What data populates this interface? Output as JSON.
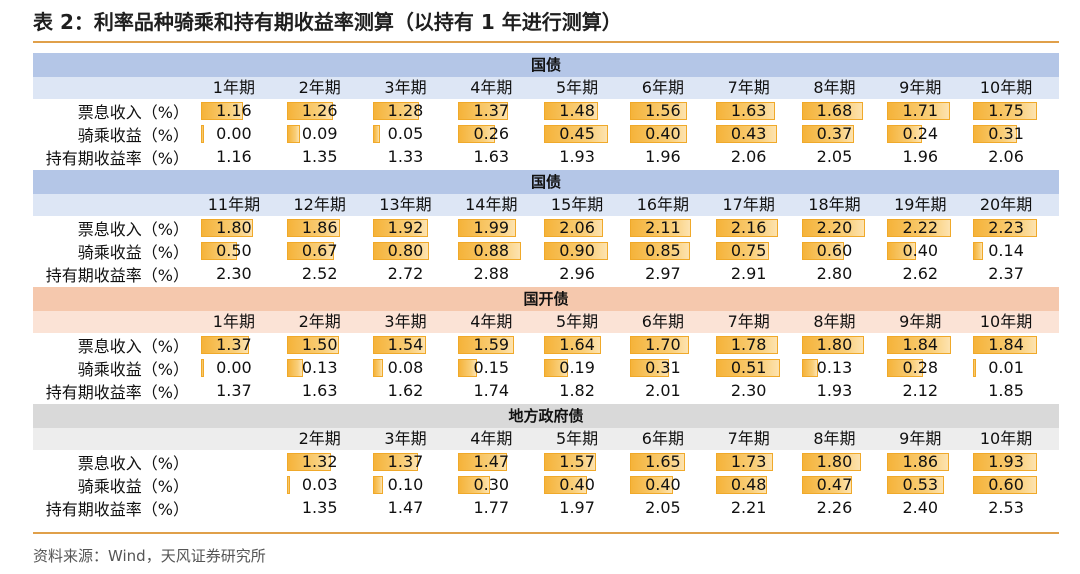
{
  "title": "表 2：利率品种骑乘和持有期收益率测算（以持有 1 年进行测算）",
  "source": "资料来源：Wind，天风证券研究所",
  "colors": {
    "rule": "#e0a04a",
    "bar": "#f5b33a",
    "blue_header": "#b4c6e7",
    "peach_header": "#f5c8ad",
    "gray_header": "#d9d9d9"
  },
  "sections": [
    {
      "name": "国债",
      "theme": "s-blue",
      "periods": [
        "1年期",
        "2年期",
        "3年期",
        "4年期",
        "5年期",
        "6年期",
        "7年期",
        "8年期",
        "9年期",
        "10年期"
      ],
      "rows": [
        {
          "label": "票息收入（%）",
          "bar": true,
          "values": [
            "1.16",
            "1.26",
            "1.28",
            "1.37",
            "1.48",
            "1.56",
            "1.63",
            "1.68",
            "1.71",
            "1.75"
          ]
        },
        {
          "label": "骑乘收益（%）",
          "bar": true,
          "values": [
            "0.00",
            "0.09",
            "0.05",
            "0.26",
            "0.45",
            "0.40",
            "0.43",
            "0.37",
            "0.24",
            "0.31"
          ]
        },
        {
          "label": "持有期收益率（%）",
          "bar": false,
          "values": [
            "1.16",
            "1.35",
            "1.33",
            "1.63",
            "1.93",
            "1.96",
            "2.06",
            "2.05",
            "1.96",
            "2.06"
          ]
        }
      ]
    },
    {
      "name": "国债",
      "theme": "s-blue",
      "periods": [
        "11年期",
        "12年期",
        "13年期",
        "14年期",
        "15年期",
        "16年期",
        "17年期",
        "18年期",
        "19年期",
        "20年期"
      ],
      "rows": [
        {
          "label": "票息收入（%）",
          "bar": true,
          "values": [
            "1.80",
            "1.86",
            "1.92",
            "1.99",
            "2.06",
            "2.11",
            "2.16",
            "2.20",
            "2.22",
            "2.23"
          ]
        },
        {
          "label": "骑乘收益（%）",
          "bar": true,
          "values": [
            "0.50",
            "0.67",
            "0.80",
            "0.88",
            "0.90",
            "0.85",
            "0.75",
            "0.60",
            "0.40",
            "0.14"
          ]
        },
        {
          "label": "持有期收益率（%）",
          "bar": false,
          "values": [
            "2.30",
            "2.52",
            "2.72",
            "2.88",
            "2.96",
            "2.97",
            "2.91",
            "2.80",
            "2.62",
            "2.37"
          ]
        }
      ]
    },
    {
      "name": "国开债",
      "theme": "s-peach",
      "periods": [
        "1年期",
        "2年期",
        "3年期",
        "4年期",
        "5年期",
        "6年期",
        "7年期",
        "8年期",
        "9年期",
        "10年期"
      ],
      "rows": [
        {
          "label": "票息收入（%）",
          "bar": true,
          "values": [
            "1.37",
            "1.50",
            "1.54",
            "1.59",
            "1.64",
            "1.70",
            "1.78",
            "1.80",
            "1.84",
            "1.84"
          ]
        },
        {
          "label": "骑乘收益（%）",
          "bar": true,
          "values": [
            "0.00",
            "0.13",
            "0.08",
            "0.15",
            "0.19",
            "0.31",
            "0.51",
            "0.13",
            "0.28",
            "0.01"
          ]
        },
        {
          "label": "持有期收益率（%）",
          "bar": false,
          "values": [
            "1.37",
            "1.63",
            "1.62",
            "1.74",
            "1.82",
            "2.01",
            "2.30",
            "1.93",
            "2.12",
            "1.85"
          ]
        }
      ]
    },
    {
      "name": "地方政府债",
      "theme": "s-gray",
      "periods": [
        "",
        "2年期",
        "3年期",
        "4年期",
        "5年期",
        "6年期",
        "7年期",
        "8年期",
        "9年期",
        "10年期"
      ],
      "rows": [
        {
          "label": "票息收入（%）",
          "bar": true,
          "values": [
            "",
            "1.32",
            "1.37",
            "1.47",
            "1.57",
            "1.65",
            "1.73",
            "1.80",
            "1.86",
            "1.93"
          ]
        },
        {
          "label": "骑乘收益（%）",
          "bar": true,
          "values": [
            "",
            "0.03",
            "0.10",
            "0.30",
            "0.40",
            "0.40",
            "0.48",
            "0.47",
            "0.53",
            "0.60"
          ]
        },
        {
          "label": "持有期收益率（%）",
          "bar": false,
          "values": [
            "",
            "1.35",
            "1.47",
            "1.77",
            "1.97",
            "2.05",
            "2.21",
            "2.26",
            "2.40",
            "2.53"
          ]
        }
      ]
    }
  ]
}
